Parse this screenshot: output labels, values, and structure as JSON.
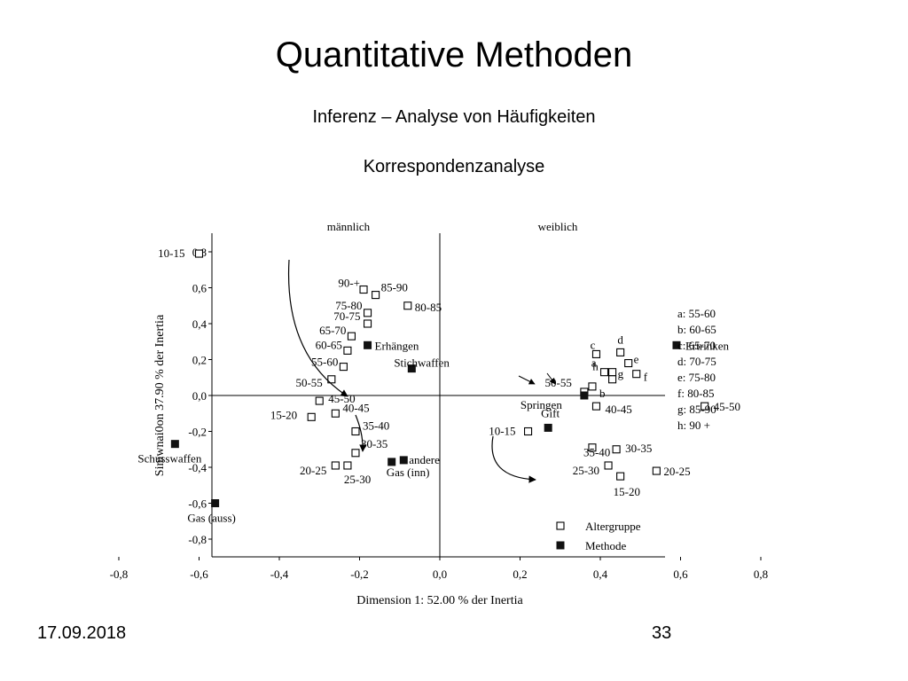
{
  "slide": {
    "title": "Quantitative Methoden",
    "subtitle": "Inferenz – Analyse von Häufigkeiten",
    "subtitle2": "Korrespondenzanalyse",
    "date": "17.09.2018",
    "page": "33"
  },
  "chart_data": {
    "type": "scatter",
    "xlabel": "Dimension 1: 52.00 % der Inertia",
    "ylabel": "Simwnai0on 37.90 % der Inertia",
    "xlim": [
      -0.93,
      0.93
    ],
    "ylim": [
      -0.9,
      0.9
    ],
    "xticks": [
      "-0,8",
      "-0,6",
      "-0,4",
      "-0,2",
      "0,0",
      "0,2",
      "0,4",
      "0,6",
      "0,8"
    ],
    "yticks": [
      "0,8",
      "0,6",
      "0,4",
      "0,2",
      "0,0",
      "-0,2",
      "-0,4",
      "-0,6",
      "-0,8"
    ],
    "quadrant_labels": {
      "left": "männlich",
      "right": "weiblich"
    },
    "legend": {
      "placement": "bottom-right",
      "items": [
        {
          "label": "Altergruppe",
          "marker": "open-square"
        },
        {
          "label": "Methode",
          "marker": "filled-square"
        }
      ]
    },
    "key": [
      "a: 55-60",
      "b: 60-65",
      "c: 65-70",
      "d: 70-75",
      "e: 75-80",
      "f: 80-85",
      "g: 85-90",
      "h: 90 +"
    ],
    "series": [
      {
        "name": "Altergruppe",
        "marker": "open-square",
        "points": [
          {
            "label": "10-15",
            "x": -0.6,
            "y": 0.79
          },
          {
            "label": "90-+",
            "x": -0.19,
            "y": 0.59
          },
          {
            "label": "85-90",
            "x": -0.16,
            "y": 0.56
          },
          {
            "label": "80-85",
            "x": -0.08,
            "y": 0.5
          },
          {
            "label": "75-80",
            "x": -0.18,
            "y": 0.46
          },
          {
            "label": "70-75",
            "x": -0.18,
            "y": 0.4
          },
          {
            "label": "65-70",
            "x": -0.22,
            "y": 0.33
          },
          {
            "label": "60-65",
            "x": -0.23,
            "y": 0.25
          },
          {
            "label": "55-60",
            "x": -0.24,
            "y": 0.16
          },
          {
            "label": "50-55",
            "x": -0.27,
            "y": 0.09
          },
          {
            "label": "45-50",
            "x": -0.3,
            "y": -0.03
          },
          {
            "label": "40-45",
            "x": -0.26,
            "y": -0.1
          },
          {
            "label": "15-20",
            "x": -0.32,
            "y": -0.12
          },
          {
            "label": "35-40",
            "x": -0.21,
            "y": -0.2
          },
          {
            "label": "30-35",
            "x": -0.21,
            "y": -0.32
          },
          {
            "label": "20-25",
            "x": -0.26,
            "y": -0.39
          },
          {
            "label": "25-30",
            "x": -0.23,
            "y": -0.39
          },
          {
            "label": "c",
            "x": 0.39,
            "y": 0.23
          },
          {
            "label": "d",
            "x": 0.45,
            "y": 0.24
          },
          {
            "label": "e",
            "x": 0.47,
            "y": 0.18
          },
          {
            "label": "h",
            "x": 0.41,
            "y": 0.13
          },
          {
            "label": "a",
            "x": 0.43,
            "y": 0.13
          },
          {
            "label": "f",
            "x": 0.49,
            "y": 0.12
          },
          {
            "label": "g",
            "x": 0.43,
            "y": 0.09
          },
          {
            "label": "b",
            "x": 0.38,
            "y": 0.05
          },
          {
            "label": "50-55",
            "x": 0.36,
            "y": 0.02
          },
          {
            "label": "40-45",
            "x": 0.39,
            "y": -0.06
          },
          {
            "label": "45-50",
            "x": 0.66,
            "y": -0.06
          },
          {
            "label": "10-15",
            "x": 0.22,
            "y": -0.2
          },
          {
            "label": "35-40",
            "x": 0.38,
            "y": -0.29
          },
          {
            "label": "30-35",
            "x": 0.44,
            "y": -0.3
          },
          {
            "label": "25-30",
            "x": 0.42,
            "y": -0.39
          },
          {
            "label": "20-25",
            "x": 0.54,
            "y": -0.42
          },
          {
            "label": "15-20",
            "x": 0.45,
            "y": -0.45
          }
        ]
      },
      {
        "name": "Methode",
        "marker": "filled-square",
        "points": [
          {
            "label": "Erhängen",
            "x": -0.18,
            "y": 0.28
          },
          {
            "label": "Stichwaffen",
            "x": -0.07,
            "y": 0.15
          },
          {
            "label": "Ertrinken",
            "x": 0.59,
            "y": 0.28
          },
          {
            "label": "Springen",
            "x": 0.36,
            "y": 0.0
          },
          {
            "label": "Gift",
            "x": 0.27,
            "y": -0.18
          },
          {
            "label": "andere",
            "x": -0.09,
            "y": -0.36
          },
          {
            "label": "Gas (inn)",
            "x": -0.12,
            "y": -0.37
          },
          {
            "label": "Schusswaffen",
            "x": -0.66,
            "y": -0.27
          },
          {
            "label": "Gas (auss)",
            "x": -0.56,
            "y": -0.6
          }
        ]
      }
    ]
  },
  "colors": {
    "text": "#000000",
    "marker_fill": "#111111",
    "background": "#ffffff"
  }
}
